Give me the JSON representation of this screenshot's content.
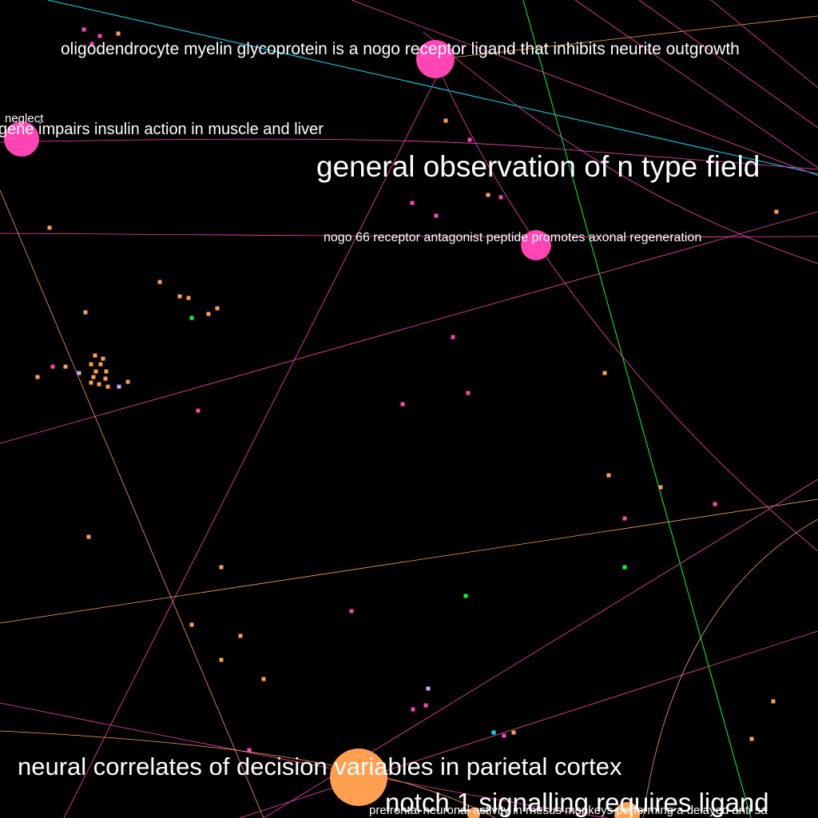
{
  "canvas": {
    "background": "#000000"
  },
  "palette": {
    "pink": "#ff44b4",
    "orange": "#ffa050",
    "cyan": "#00e5ff",
    "green": "#00ff33",
    "lavender": "#c8a8ff",
    "label": "#ffffff"
  },
  "papers": [
    {
      "id": "omgp",
      "title": "oligodendrocyte myelin glycoprotein is a nogo receptor ligand that inhibits neurite outgrowth",
      "color": "pink"
    },
    {
      "id": "neglect",
      "title": "neglect",
      "color": "pink"
    },
    {
      "id": "insulin",
      "title": "gene impairs insulin action in muscle and liver",
      "color": "pink"
    },
    {
      "id": "ntype",
      "title": "general observation of n type field",
      "color": "pink"
    },
    {
      "id": "nogo66",
      "title": "nogo 66 receptor antagonist peptide promotes axonal regeneration",
      "color": "pink"
    },
    {
      "id": "parietal",
      "title": "neural correlates of decision variables in parietal cortex",
      "color": "orange"
    },
    {
      "id": "notch",
      "title": "notch 1 signalling requires ligand",
      "color": "orange"
    },
    {
      "id": "prefrontal",
      "title": "prefrontal neuronal activity in rhesus monkeys performing a delayed anti sa",
      "color": "pink"
    }
  ]
}
